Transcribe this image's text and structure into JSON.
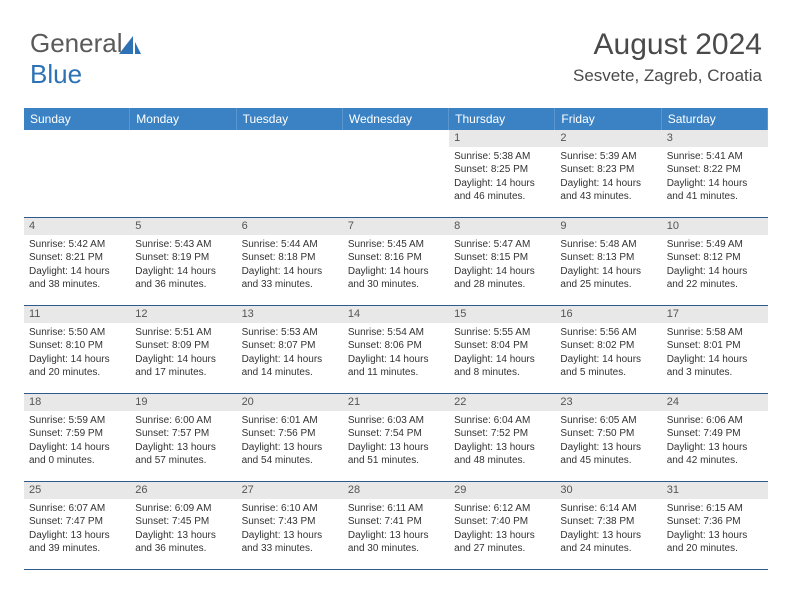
{
  "logo": {
    "text_general": "General",
    "text_blue": "Blue"
  },
  "header": {
    "month": "August 2024",
    "location": "Sesvete, Zagreb, Croatia"
  },
  "colors": {
    "header_bg": "#3b82c4",
    "header_text": "#ffffff",
    "daynum_bg": "#e8e8e8",
    "cell_border": "#2d5a8a",
    "text": "#333333",
    "logo_gray": "#5a5a5a",
    "logo_blue": "#2d72b5"
  },
  "daynames": [
    "Sunday",
    "Monday",
    "Tuesday",
    "Wednesday",
    "Thursday",
    "Friday",
    "Saturday"
  ],
  "grid": {
    "lead_empty": 4,
    "days": [
      {
        "n": 1,
        "sr": "5:38 AM",
        "ss": "8:25 PM",
        "dl": "14 hours and 46 minutes."
      },
      {
        "n": 2,
        "sr": "5:39 AM",
        "ss": "8:23 PM",
        "dl": "14 hours and 43 minutes."
      },
      {
        "n": 3,
        "sr": "5:41 AM",
        "ss": "8:22 PM",
        "dl": "14 hours and 41 minutes."
      },
      {
        "n": 4,
        "sr": "5:42 AM",
        "ss": "8:21 PM",
        "dl": "14 hours and 38 minutes."
      },
      {
        "n": 5,
        "sr": "5:43 AM",
        "ss": "8:19 PM",
        "dl": "14 hours and 36 minutes."
      },
      {
        "n": 6,
        "sr": "5:44 AM",
        "ss": "8:18 PM",
        "dl": "14 hours and 33 minutes."
      },
      {
        "n": 7,
        "sr": "5:45 AM",
        "ss": "8:16 PM",
        "dl": "14 hours and 30 minutes."
      },
      {
        "n": 8,
        "sr": "5:47 AM",
        "ss": "8:15 PM",
        "dl": "14 hours and 28 minutes."
      },
      {
        "n": 9,
        "sr": "5:48 AM",
        "ss": "8:13 PM",
        "dl": "14 hours and 25 minutes."
      },
      {
        "n": 10,
        "sr": "5:49 AM",
        "ss": "8:12 PM",
        "dl": "14 hours and 22 minutes."
      },
      {
        "n": 11,
        "sr": "5:50 AM",
        "ss": "8:10 PM",
        "dl": "14 hours and 20 minutes."
      },
      {
        "n": 12,
        "sr": "5:51 AM",
        "ss": "8:09 PM",
        "dl": "14 hours and 17 minutes."
      },
      {
        "n": 13,
        "sr": "5:53 AM",
        "ss": "8:07 PM",
        "dl": "14 hours and 14 minutes."
      },
      {
        "n": 14,
        "sr": "5:54 AM",
        "ss": "8:06 PM",
        "dl": "14 hours and 11 minutes."
      },
      {
        "n": 15,
        "sr": "5:55 AM",
        "ss": "8:04 PM",
        "dl": "14 hours and 8 minutes."
      },
      {
        "n": 16,
        "sr": "5:56 AM",
        "ss": "8:02 PM",
        "dl": "14 hours and 5 minutes."
      },
      {
        "n": 17,
        "sr": "5:58 AM",
        "ss": "8:01 PM",
        "dl": "14 hours and 3 minutes."
      },
      {
        "n": 18,
        "sr": "5:59 AM",
        "ss": "7:59 PM",
        "dl": "14 hours and 0 minutes."
      },
      {
        "n": 19,
        "sr": "6:00 AM",
        "ss": "7:57 PM",
        "dl": "13 hours and 57 minutes."
      },
      {
        "n": 20,
        "sr": "6:01 AM",
        "ss": "7:56 PM",
        "dl": "13 hours and 54 minutes."
      },
      {
        "n": 21,
        "sr": "6:03 AM",
        "ss": "7:54 PM",
        "dl": "13 hours and 51 minutes."
      },
      {
        "n": 22,
        "sr": "6:04 AM",
        "ss": "7:52 PM",
        "dl": "13 hours and 48 minutes."
      },
      {
        "n": 23,
        "sr": "6:05 AM",
        "ss": "7:50 PM",
        "dl": "13 hours and 45 minutes."
      },
      {
        "n": 24,
        "sr": "6:06 AM",
        "ss": "7:49 PM",
        "dl": "13 hours and 42 minutes."
      },
      {
        "n": 25,
        "sr": "6:07 AM",
        "ss": "7:47 PM",
        "dl": "13 hours and 39 minutes."
      },
      {
        "n": 26,
        "sr": "6:09 AM",
        "ss": "7:45 PM",
        "dl": "13 hours and 36 minutes."
      },
      {
        "n": 27,
        "sr": "6:10 AM",
        "ss": "7:43 PM",
        "dl": "13 hours and 33 minutes."
      },
      {
        "n": 28,
        "sr": "6:11 AM",
        "ss": "7:41 PM",
        "dl": "13 hours and 30 minutes."
      },
      {
        "n": 29,
        "sr": "6:12 AM",
        "ss": "7:40 PM",
        "dl": "13 hours and 27 minutes."
      },
      {
        "n": 30,
        "sr": "6:14 AM",
        "ss": "7:38 PM",
        "dl": "13 hours and 24 minutes."
      },
      {
        "n": 31,
        "sr": "6:15 AM",
        "ss": "7:36 PM",
        "dl": "13 hours and 20 minutes."
      }
    ]
  },
  "labels": {
    "sunrise": "Sunrise:",
    "sunset": "Sunset:",
    "daylight": "Daylight:"
  }
}
